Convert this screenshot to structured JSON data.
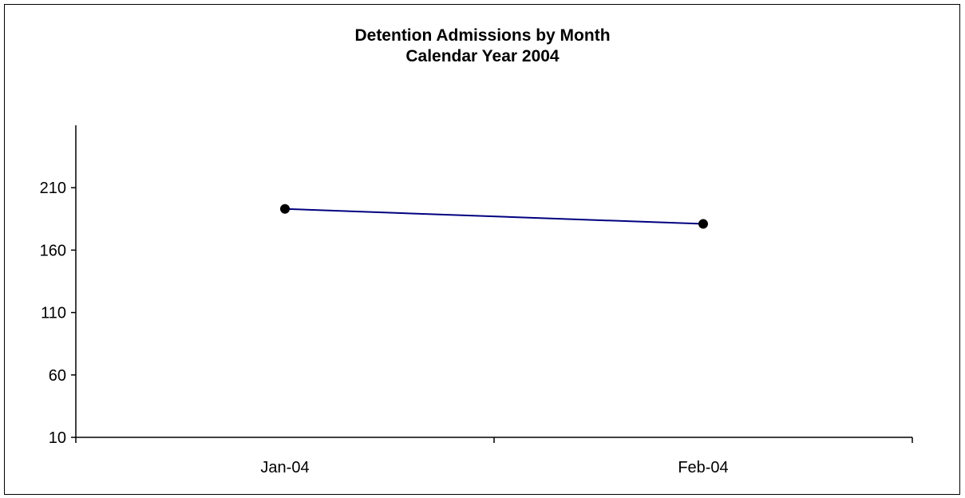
{
  "chart_data": {
    "type": "line",
    "title": "Detention Admissions by Month",
    "subtitle": "Calendar Year 2004",
    "categories": [
      "Jan-04",
      "Feb-04"
    ],
    "series": [
      {
        "values": [
          193,
          181
        ]
      }
    ],
    "ylim": [
      10,
      260
    ],
    "yticks": [
      10,
      60,
      110,
      160,
      210
    ],
    "grid": false,
    "legend": "none",
    "colors": {
      "line": "#000080",
      "marker": "#000000",
      "axis": "#000000"
    }
  }
}
